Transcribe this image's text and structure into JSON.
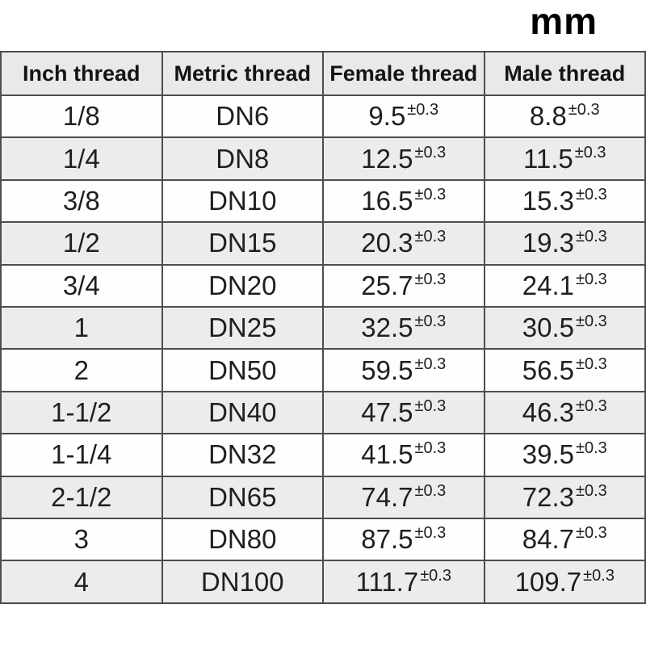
{
  "unit_label": "mm",
  "colors": {
    "border": "#4d4d4d",
    "header_background": "#e9e9e9",
    "stripe_background": "#ececec",
    "text": "#1f1f1f",
    "page_background": "#ffffff"
  },
  "chart_data": {
    "type": "table",
    "unit": "mm",
    "columns": [
      "Inch thread",
      "Metric thread",
      "Female thread",
      "Male thread"
    ],
    "rows": [
      {
        "inch": "1/8",
        "metric": "DN6",
        "female_value": "9.5",
        "female_tolerance": "±0.3",
        "male_value": "8.8",
        "male_tolerance": "±0.3"
      },
      {
        "inch": "1/4",
        "metric": "DN8",
        "female_value": "12.5",
        "female_tolerance": "±0.3",
        "male_value": "11.5",
        "male_tolerance": "±0.3"
      },
      {
        "inch": "3/8",
        "metric": "DN10",
        "female_value": "16.5",
        "female_tolerance": "±0.3",
        "male_value": "15.3",
        "male_tolerance": "±0.3"
      },
      {
        "inch": "1/2",
        "metric": "DN15",
        "female_value": "20.3",
        "female_tolerance": "±0.3",
        "male_value": "19.3",
        "male_tolerance": "±0.3"
      },
      {
        "inch": "3/4",
        "metric": "DN20",
        "female_value": "25.7",
        "female_tolerance": "±0.3",
        "male_value": "24.1",
        "male_tolerance": "±0.3"
      },
      {
        "inch": "1",
        "metric": "DN25",
        "female_value": "32.5",
        "female_tolerance": "±0.3",
        "male_value": "30.5",
        "male_tolerance": "±0.3"
      },
      {
        "inch": "2",
        "metric": "DN50",
        "female_value": "59.5",
        "female_tolerance": "±0.3",
        "male_value": "56.5",
        "male_tolerance": "±0.3"
      },
      {
        "inch": "1-1/2",
        "metric": "DN40",
        "female_value": "47.5",
        "female_tolerance": "±0.3",
        "male_value": "46.3",
        "male_tolerance": "±0.3"
      },
      {
        "inch": "1-1/4",
        "metric": "DN32",
        "female_value": "41.5",
        "female_tolerance": "±0.3",
        "male_value": "39.5",
        "male_tolerance": "±0.3"
      },
      {
        "inch": "2-1/2",
        "metric": "DN65",
        "female_value": "74.7",
        "female_tolerance": "±0.3",
        "male_value": "72.3",
        "male_tolerance": "±0.3"
      },
      {
        "inch": "3",
        "metric": "DN80",
        "female_value": "87.5",
        "female_tolerance": "±0.3",
        "male_value": "84.7",
        "male_tolerance": "±0.3"
      },
      {
        "inch": "4",
        "metric": "DN100",
        "female_value": "111.7",
        "female_tolerance": "±0.3",
        "male_value": "109.7",
        "male_tolerance": "±0.3"
      }
    ]
  }
}
